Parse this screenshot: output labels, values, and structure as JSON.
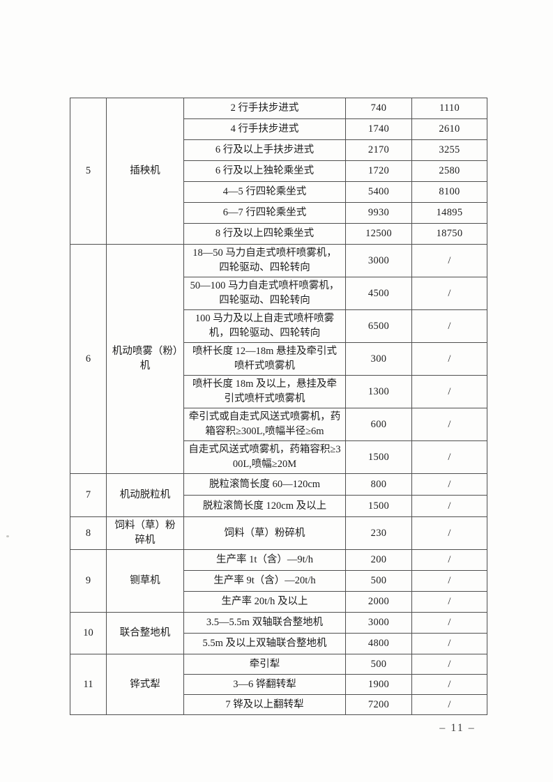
{
  "page": {
    "footer_page_number": "– 11 –"
  },
  "table": {
    "sections": [
      {
        "no": "5",
        "category": "插秧机",
        "rows": [
          {
            "desc": "2 行手扶步进式",
            "values": [
              "740",
              "1110"
            ]
          },
          {
            "desc": "4 行手扶步进式",
            "values": [
              "1740",
              "2610"
            ]
          },
          {
            "desc": "6 行及以上手扶步进式",
            "values": [
              "2170",
              "3255"
            ]
          },
          {
            "desc": "6 行及以上独轮乘坐式",
            "values": [
              "1720",
              "2580"
            ]
          },
          {
            "desc": "4—5 行四轮乘坐式",
            "values": [
              "5400",
              "8100"
            ]
          },
          {
            "desc": "6—7 行四轮乘坐式",
            "values": [
              "9930",
              "14895"
            ]
          },
          {
            "desc": "8 行及以上四轮乘坐式",
            "values": [
              "12500",
              "18750"
            ]
          }
        ]
      },
      {
        "no": "6",
        "category": "机动喷雾（粉）机",
        "rows": [
          {
            "desc": "18—50 马力自走式喷杆喷雾机，四轮驱动、四轮转向",
            "values": [
              "3000",
              "/"
            ]
          },
          {
            "desc": "50—100 马力自走式喷杆喷雾机，四轮驱动、四轮转向",
            "values": [
              "4500",
              "/"
            ]
          },
          {
            "desc": "100 马力及以上自走式喷杆喷雾机，四轮驱动、四轮转向",
            "values": [
              "6500",
              "/"
            ]
          },
          {
            "desc": "喷杆长度 12—18m 悬挂及牵引式喷杆式喷雾机",
            "values": [
              "300",
              "/"
            ]
          },
          {
            "desc": "喷杆长度 18m 及以上，悬挂及牵引式喷杆式喷雾机",
            "values": [
              "1300",
              "/"
            ]
          },
          {
            "desc": "牵引式或自走式风送式喷雾机，药箱容积≥300L,喷幅半径≥6m",
            "values": [
              "600",
              "/"
            ]
          },
          {
            "desc": "自走式风送式喷雾机，药箱容积≥300L,喷幅≥20M",
            "values": [
              "1500",
              "/"
            ]
          }
        ]
      },
      {
        "no": "7",
        "category": "机动脱粒机",
        "rows": [
          {
            "desc": "脱粒滚筒长度 60—120cm",
            "values": [
              "800",
              "/"
            ]
          },
          {
            "desc": "脱粒滚筒长度 120cm 及以上",
            "values": [
              "1500",
              "/"
            ]
          }
        ]
      },
      {
        "no": "8",
        "category": "饲料（草）粉碎机",
        "rows": [
          {
            "desc": "饲料（草）粉碎机",
            "values": [
              "230",
              "/"
            ]
          }
        ]
      },
      {
        "no": "9",
        "category": "铡草机",
        "rows": [
          {
            "desc": "生产率 1t（含）—9t/h",
            "values": [
              "200",
              "/"
            ]
          },
          {
            "desc": "生产率 9t（含）—20t/h",
            "values": [
              "500",
              "/"
            ]
          },
          {
            "desc": "生产率 20t/h 及以上",
            "values": [
              "2000",
              "/"
            ]
          }
        ]
      },
      {
        "no": "10",
        "category": "联合整地机",
        "rows": [
          {
            "desc": "3.5—5.5m 双轴联合整地机",
            "values": [
              "3000",
              "/"
            ]
          },
          {
            "desc": "5.5m 及以上双轴联合整地机",
            "values": [
              "4800",
              "/"
            ]
          }
        ]
      },
      {
        "no": "11",
        "category": "铧式犁",
        "rows": [
          {
            "desc": "牵引犁",
            "values": [
              "500",
              "/"
            ]
          },
          {
            "desc": "3—6 铧翻转犁",
            "values": [
              "1900",
              "/"
            ]
          },
          {
            "desc": "7 铧及以上翻转犁",
            "values": [
              "7200",
              "/"
            ]
          }
        ]
      }
    ]
  }
}
